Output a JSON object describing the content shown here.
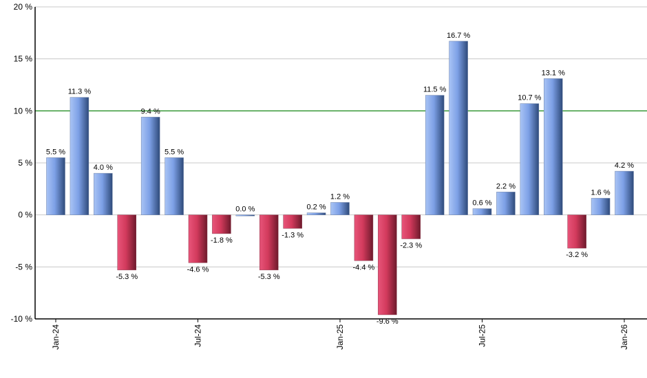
{
  "chart_data": {
    "type": "bar",
    "categories": [
      "Jan-24",
      "Feb-24",
      "Mar-24",
      "Apr-24",
      "May-24",
      "Jun-24",
      "Jul-24",
      "Aug-24",
      "Sep-24",
      "Oct-24",
      "Nov-24",
      "Dec-24",
      "Jan-25",
      "Feb-25",
      "Mar-25",
      "Apr-25",
      "May-25",
      "Jun-25",
      "Jul-25",
      "Aug-25",
      "Sep-25",
      "Oct-25",
      "Nov-25",
      "Dec-25",
      "Jan-26"
    ],
    "values": [
      5.5,
      11.3,
      4.0,
      -5.3,
      9.4,
      5.5,
      -4.6,
      -1.8,
      0.0,
      -5.3,
      -1.3,
      0.2,
      1.2,
      -4.4,
      -9.6,
      -2.3,
      11.5,
      16.7,
      0.6,
      2.2,
      10.7,
      13.1,
      -3.2,
      1.6,
      4.2
    ],
    "data_labels": [
      "5.5 %",
      "11.3 %",
      "4.0 %",
      "-5.3 %",
      "9.4 %",
      "5.5 %",
      "-4.6 %",
      "-1.8 %",
      "0.0 %",
      "-5.3 %",
      "-1.3 %",
      "0.2 %",
      "1.2 %",
      "-4.4 %",
      "-9.6 %",
      "-2.3 %",
      "11.5 %",
      "16.7 %",
      "0.6 %",
      "2.2 %",
      "10.7 %",
      "13.1 %",
      "-3.2 %",
      "1.6 %",
      "4.2 %"
    ],
    "x_tick_labels": [
      {
        "category": "Jan-24",
        "label": "Jan-24"
      },
      {
        "category": "Jul-24",
        "label": "Jul-24"
      },
      {
        "category": "Jan-25",
        "label": "Jan-25"
      },
      {
        "category": "Jul-25",
        "label": "Jul-25"
      },
      {
        "category": "Jan-26",
        "label": "Jan-26"
      }
    ],
    "y_ticks": [
      -10,
      -5,
      0,
      5,
      10,
      15,
      20
    ],
    "y_tick_labels": [
      "-10 %",
      "-5 %",
      "0 %",
      "5 %",
      "10 %",
      "15 %",
      "20 %"
    ],
    "ylim": [
      -10,
      20
    ],
    "grid": true,
    "reference_line": {
      "value": 10,
      "color": "#008000"
    },
    "colors": {
      "positive": "#5b7fc4",
      "negative": "#c8254a",
      "grid": "#c8c8c8"
    },
    "title": "",
    "xlabel": "",
    "ylabel": ""
  }
}
